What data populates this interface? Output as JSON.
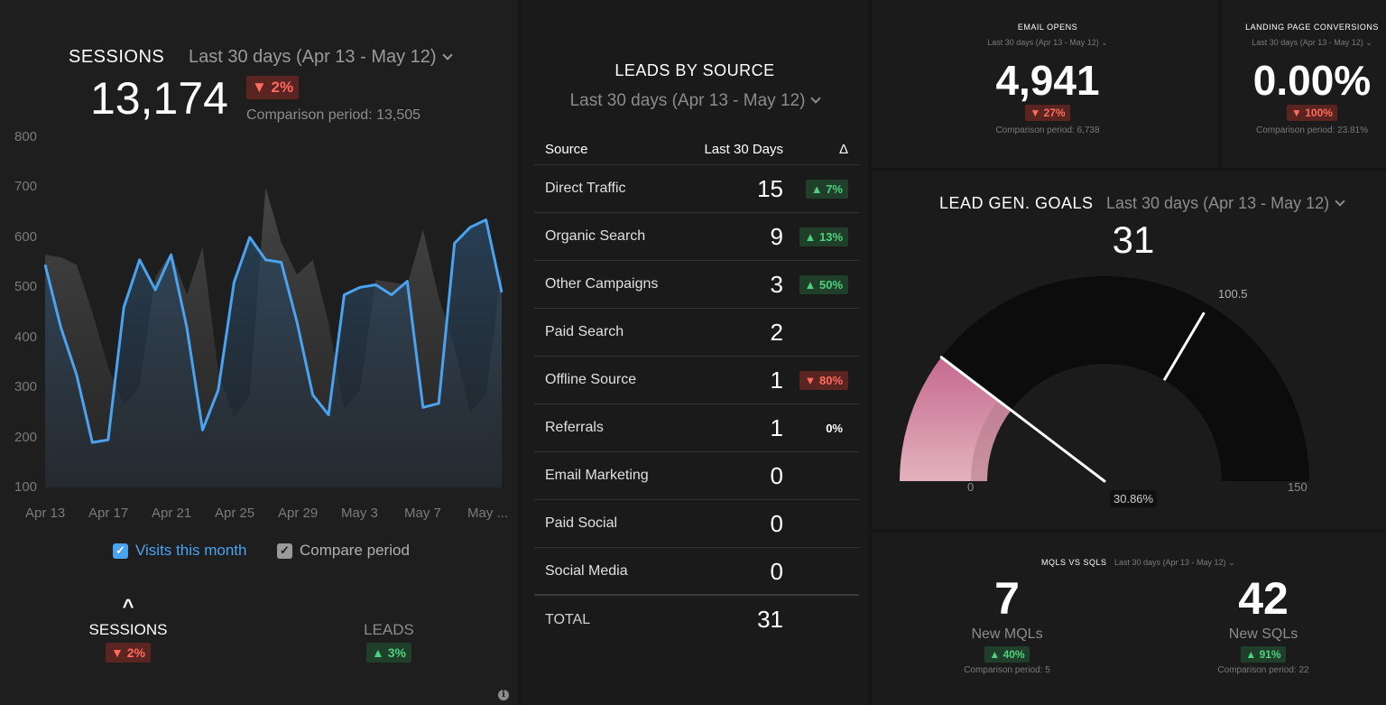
{
  "sessions": {
    "title": "SESSIONS",
    "period": "Last 30 days (Apr 13 - May 12)",
    "value": "13,174",
    "delta": "▼ 2%",
    "comparison": "Comparison period: 13,505",
    "legend_current": "Visits this month",
    "legend_compare": "Compare period",
    "tabs": [
      {
        "label": "SESSIONS",
        "delta": "▼ 2%",
        "arrow": "^"
      },
      {
        "label": "LEADS",
        "delta": "▲ 3%"
      }
    ],
    "colors": {
      "current": "#4aa3f0",
      "compare": "#3a3a3a"
    }
  },
  "chart_data": {
    "type": "area",
    "ylim": [
      100,
      800
    ],
    "y_ticks": [
      "800",
      "700",
      "600",
      "500",
      "400",
      "300",
      "200",
      "100"
    ],
    "x_tick_labels": [
      "Apr 13",
      "Apr 17",
      "Apr 21",
      "Apr 25",
      "Apr 29",
      "May 3",
      "May 7",
      "May ..."
    ],
    "series": [
      {
        "name": "Visits this month",
        "values": [
          545,
          420,
          325,
          190,
          195,
          460,
          555,
          495,
          565,
          420,
          215,
          295,
          510,
          600,
          555,
          550,
          430,
          285,
          245,
          485,
          500,
          505,
          485,
          512,
          260,
          268,
          588,
          620,
          635,
          490
        ]
      },
      {
        "name": "Compare period",
        "values": [
          565,
          560,
          545,
          450,
          340,
          265,
          300,
          520,
          570,
          485,
          580,
          330,
          240,
          285,
          700,
          590,
          525,
          555,
          430,
          255,
          295,
          515,
          510,
          505,
          615,
          480,
          380,
          250,
          285,
          535
        ]
      }
    ]
  },
  "leads": {
    "title": "LEADS BY SOURCE",
    "period": "Last 30 days (Apr 13 - May 12)",
    "headers": {
      "source": "Source",
      "value": "Last 30 Days",
      "delta": "Δ"
    },
    "rows": [
      {
        "source": "Direct Traffic",
        "value": "15",
        "delta": "▲ 7%",
        "dir": "up"
      },
      {
        "source": "Organic Search",
        "value": "9",
        "delta": "▲ 13%",
        "dir": "up"
      },
      {
        "source": "Other Campaigns",
        "value": "3",
        "delta": "▲ 50%",
        "dir": "up"
      },
      {
        "source": "Paid Search",
        "value": "2",
        "delta": "",
        "dir": ""
      },
      {
        "source": "Offline Source",
        "value": "1",
        "delta": "▼ 80%",
        "dir": "down"
      },
      {
        "source": "Referrals",
        "value": "1",
        "delta": "0%",
        "dir": "flat"
      },
      {
        "source": "Email Marketing",
        "value": "0",
        "delta": "",
        "dir": ""
      },
      {
        "source": "Paid Social",
        "value": "0",
        "delta": "",
        "dir": ""
      },
      {
        "source": "Social Media",
        "value": "0",
        "delta": "",
        "dir": ""
      }
    ],
    "total_label": "TOTAL",
    "total_value": "31"
  },
  "email": {
    "title": "EMAIL OPENS",
    "period": "Last 30 days (Apr 13 - May 12)",
    "value": "4,941",
    "delta": "▼ 27%",
    "comparison": "Comparison period: 6,738"
  },
  "landing": {
    "title": "LANDING PAGE CONVERSIONS",
    "period": "Last 30 days (Apr 13 - May 12)",
    "value": "0.00%",
    "delta": "▼ 100%",
    "comparison": "Comparison period: 23.81%"
  },
  "goals": {
    "title": "LEAD GEN. GOALS",
    "period": "Last 30 days (Apr 13 - May 12)",
    "value": "31",
    "gauge_min": 0,
    "gauge_max": 150,
    "gauge_value": 31,
    "goal_value": 100.5,
    "min_label": "0",
    "max_label": "150",
    "goal_label": "100.5",
    "percent_label": "30.86%",
    "colors": {
      "fill": "#d99aae",
      "track": "#0d0d0d"
    }
  },
  "mql": {
    "title": "MQLS VS SQLS",
    "period": "Last 30 days (Apr 13 - May 12)",
    "items": [
      {
        "value": "7",
        "label": "New MQLs",
        "delta": "▲ 40%",
        "comparison": "Comparison period: 5"
      },
      {
        "value": "42",
        "label": "New SQLs",
        "delta": "▲ 91%",
        "comparison": "Comparison period: 22"
      }
    ]
  },
  "info_icon": "info-icon"
}
